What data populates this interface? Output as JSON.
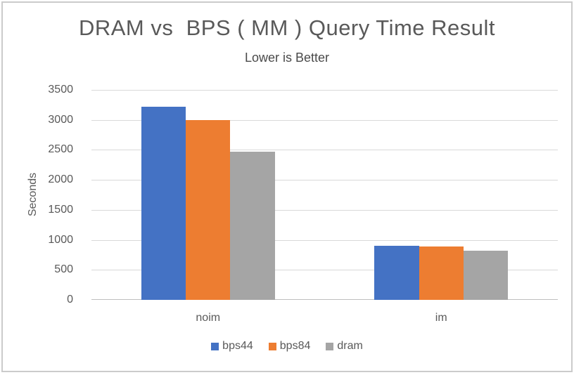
{
  "window": {
    "background": "#ffffff",
    "border_color": "#cbcbcb"
  },
  "chart_data": {
    "type": "bar",
    "title": "DRAM vs  BPS ( MM ) Query Time Result",
    "subtitle": "Lower is Better",
    "ylabel": "Seconds",
    "xlabel": "",
    "categories": [
      "noim",
      "im"
    ],
    "series": [
      {
        "name": "bps44",
        "color": "#4472C4",
        "values": [
          3220,
          900
        ]
      },
      {
        "name": "bps84",
        "color": "#ED7D31",
        "values": [
          3000,
          890
        ]
      },
      {
        "name": "dram",
        "color": "#A5A5A5",
        "values": [
          2470,
          820
        ]
      }
    ],
    "ylim": [
      0,
      3500
    ],
    "ytick_step": 500,
    "ytick_labels": [
      "0",
      "500",
      "1000",
      "1500",
      "2000",
      "2500",
      "3000",
      "3500"
    ],
    "grid": true,
    "legend_position": "bottom",
    "text_color": "#595959",
    "gridline_color": "#d9d9d9",
    "axisline_color": "#bfbfbf"
  }
}
